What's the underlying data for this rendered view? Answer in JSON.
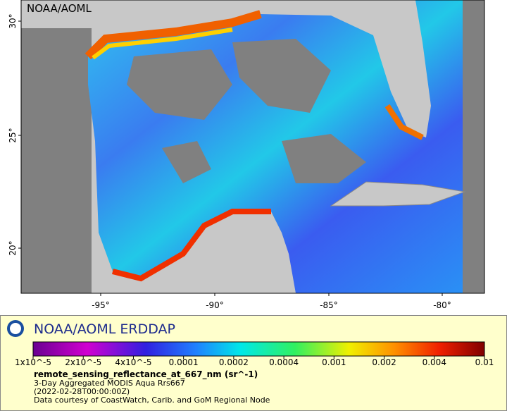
{
  "map": {
    "watermark": "NOAA/AOML",
    "lat_labels": [
      "30°",
      "25°",
      "20°"
    ],
    "lon_labels": [
      "-95°",
      "-90°",
      "-85°",
      "-80°"
    ]
  },
  "legend": {
    "brand": "NOAA/AOML ERDDAP",
    "colorbar_ticks": [
      "1x10^-5",
      "2x10^-5",
      "4x10^-5",
      "0.0001",
      "0.0002",
      "0.0004",
      "0.001",
      "0.002",
      "0.004",
      "0.01"
    ],
    "variable": "remote_sensing_reflectance_at_667_nm (sr^-1)",
    "lines": [
      "3-Day Aggregated MODIS Aqua Rrs667",
      "(2022-02-28T00:00:00Z)",
      "Data courtesy of CoastWatch, Carib. and GoM Regional Node"
    ]
  }
}
